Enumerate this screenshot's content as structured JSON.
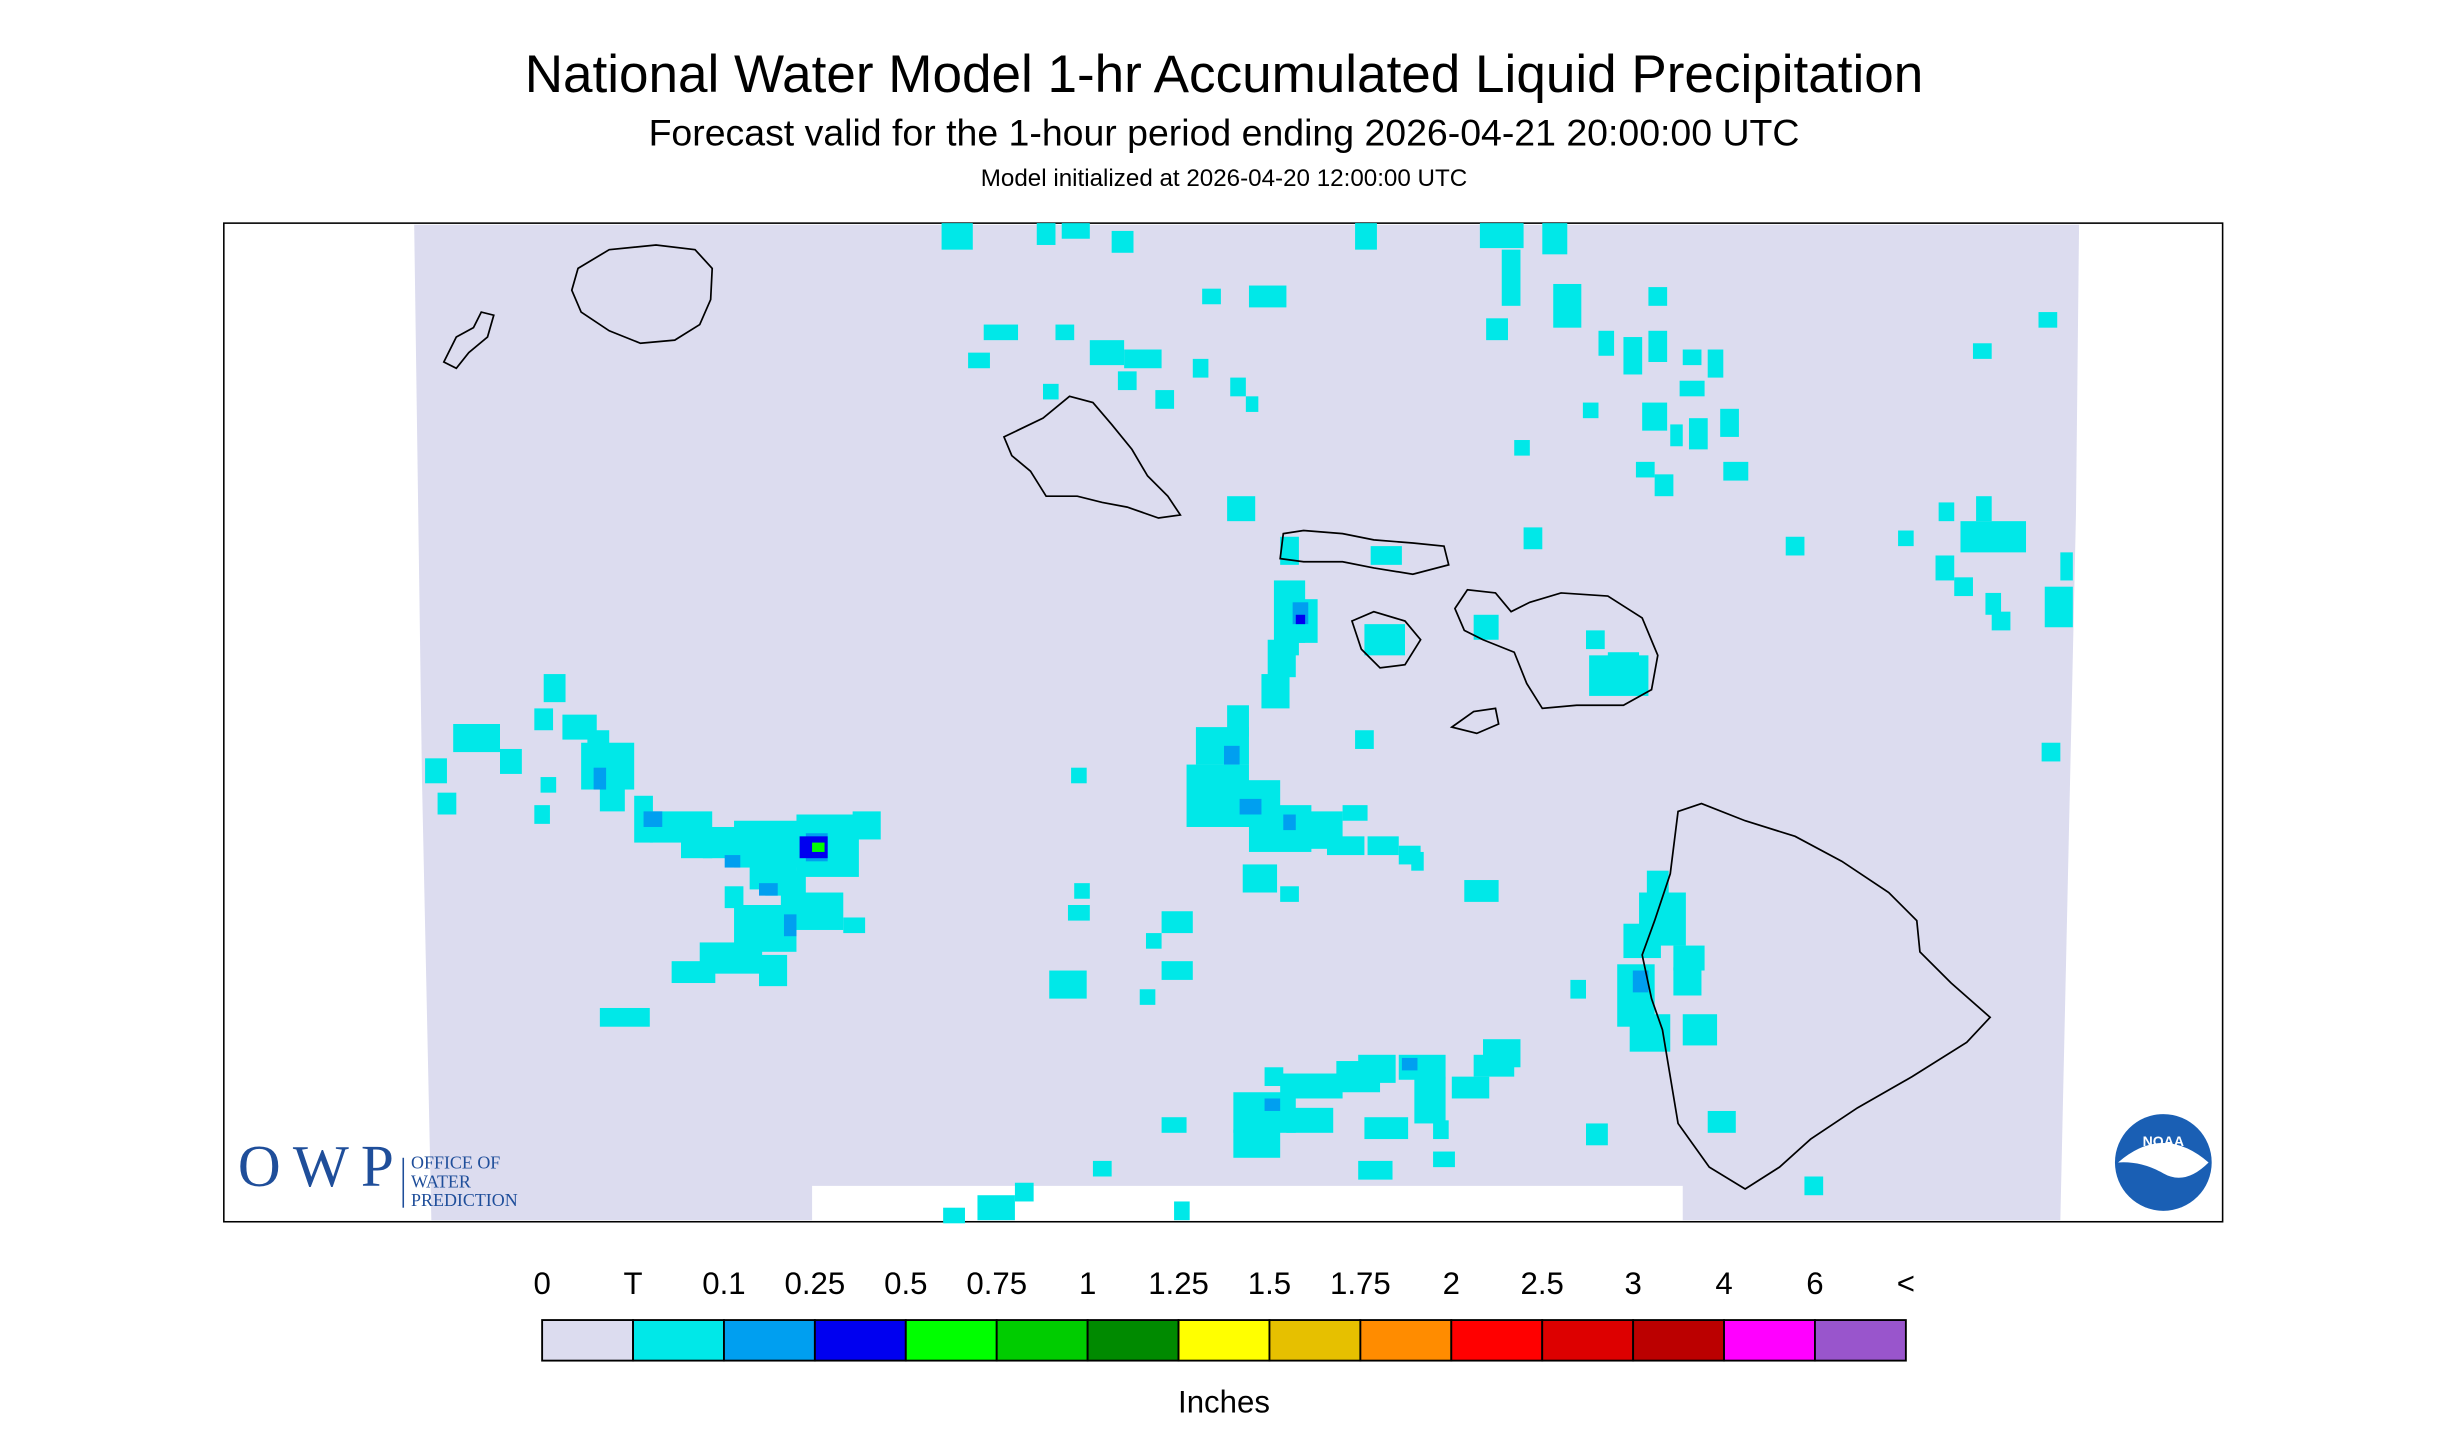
{
  "header": {
    "title": "National Water Model 1-hr Accumulated Liquid Precipitation",
    "subtitle": "Forecast valid for the 1-hour period ending 2026-04-21 20:00:00 UTC",
    "init": "Model initialized at 2026-04-20 12:00:00 UTC"
  },
  "legend": {
    "labels": [
      "0",
      "T",
      "0.1",
      "0.25",
      "0.5",
      "0.75",
      "1",
      "1.25",
      "1.5",
      "1.75",
      "2",
      "2.5",
      "3",
      "4",
      "6",
      "<"
    ],
    "colors": [
      "#dcdcef",
      "#00e8e8",
      "#009ff0",
      "#0000f0",
      "#00ff00",
      "#00cc00",
      "#008a00",
      "#ffff00",
      "#e6c000",
      "#ff8c00",
      "#ff0000",
      "#dd0000",
      "#bb0000",
      "#ff00ff",
      "#9955cc"
    ],
    "units": "Inches"
  },
  "logos": {
    "owp": "OWP",
    "owp_lines": [
      "OFFICE OF",
      "WATER",
      "PREDICTION"
    ],
    "noaa": "NOAA"
  }
}
